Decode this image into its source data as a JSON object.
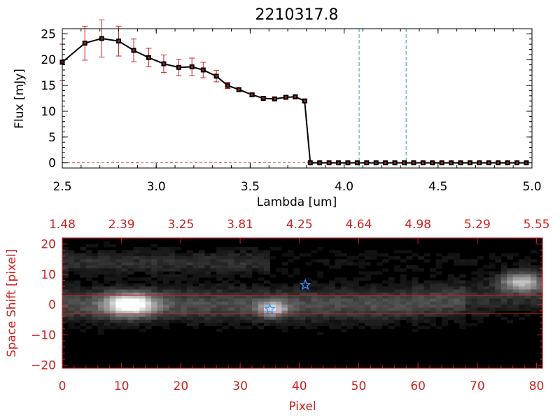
{
  "chart_data": [
    {
      "type": "line",
      "title": "2210317.8",
      "xlabel": "Lambda [um]",
      "ylabel": "Flux [mJy]",
      "xlim": [
        2.5,
        5.0
      ],
      "ylim": [
        -1,
        26
      ],
      "xticks": [
        2.5,
        3.0,
        3.5,
        4.0,
        4.5,
        5.0
      ],
      "xtick_labels": [
        "2.5",
        "3.0",
        "3.5",
        "4.0",
        "4.5",
        "5.0"
      ],
      "yticks": [
        0,
        5,
        10,
        15,
        20,
        25
      ],
      "ytick_labels": [
        "0",
        "5",
        "10",
        "15",
        "20",
        "25"
      ],
      "series": [
        {
          "name": "flux",
          "x": [
            2.5,
            2.62,
            2.71,
            2.8,
            2.88,
            2.96,
            3.04,
            3.12,
            3.19,
            3.25,
            3.32,
            3.38,
            3.44,
            3.51,
            3.57,
            3.63,
            3.69,
            3.74,
            3.79,
            3.82,
            3.87,
            3.92,
            3.97,
            4.02,
            4.07,
            4.12,
            4.17,
            4.22,
            4.27,
            4.32,
            4.37,
            4.42,
            4.47,
            4.52,
            4.57,
            4.62,
            4.67,
            4.72,
            4.77,
            4.82,
            4.87,
            4.92,
            4.97
          ],
          "y": [
            19.5,
            23.2,
            24.1,
            23.6,
            21.8,
            20.4,
            19.2,
            18.5,
            18.6,
            18.0,
            16.8,
            15.0,
            14.2,
            13.2,
            12.5,
            12.4,
            12.7,
            12.8,
            12.0,
            0,
            0,
            0,
            0,
            0,
            0,
            0,
            0,
            0,
            0,
            0,
            0,
            0,
            0,
            0,
            0,
            0,
            0,
            0,
            0,
            0,
            0,
            0,
            0
          ],
          "err": [
            3.5,
            3.3,
            3.6,
            2.9,
            2.2,
            1.8,
            1.7,
            1.6,
            1.7,
            1.5,
            1.1,
            0.6,
            0.4,
            0.3,
            0.2,
            0.2,
            0.3,
            0.4,
            0.3,
            0,
            0,
            0,
            0,
            0,
            0,
            0,
            0,
            0,
            0,
            0,
            0,
            0,
            0,
            0,
            0,
            0,
            0,
            0,
            0,
            0,
            0,
            0,
            0
          ]
        }
      ],
      "vlines": [
        4.08,
        4.33
      ],
      "colors": {
        "line": "#000000",
        "errorbar": "#cc2222",
        "vline": "#3399cc"
      }
    },
    {
      "type": "heatmap",
      "xlabel": "Pixel",
      "ylabel": "Space Shift [pixel]",
      "xlim": [
        0,
        81
      ],
      "ylim": [
        -21,
        22
      ],
      "xticks": [
        0,
        10,
        20,
        30,
        40,
        50,
        60,
        70,
        80
      ],
      "xtick_labels": [
        "0",
        "10",
        "20",
        "30",
        "40",
        "50",
        "60",
        "70",
        "80"
      ],
      "yticks": [
        -20,
        -10,
        0,
        10,
        20
      ],
      "ytick_labels": [
        "−20",
        "−10",
        "0",
        "10",
        "20"
      ],
      "top_axis_values": [
        0,
        10,
        20,
        30,
        40,
        50,
        60,
        70,
        80
      ],
      "top_axis_labels": [
        "1.48",
        "2.39",
        "3.25",
        "3.81",
        "4.25",
        "4.64",
        "4.98",
        "5.29",
        "5.55"
      ],
      "extraction_band": [
        -3,
        3
      ],
      "sources": [
        {
          "x": 11.5,
          "y": 0,
          "sx": 4.0,
          "sy": 3.5,
          "amp": 0.95
        },
        {
          "x": 35.5,
          "y": -1.5,
          "sx": 2.5,
          "sy": 2.5,
          "amp": 0.6
        },
        {
          "x": 77.5,
          "y": 7.5,
          "sx": 3.5,
          "sy": 3.0,
          "amp": 0.7
        }
      ],
      "stars": [
        {
          "x": 41,
          "y": 6.5
        },
        {
          "x": 35,
          "y": -1.5
        }
      ],
      "colors": {
        "axis": "#cc2222",
        "star": "#3399ff",
        "band": "#cc2222"
      }
    }
  ]
}
